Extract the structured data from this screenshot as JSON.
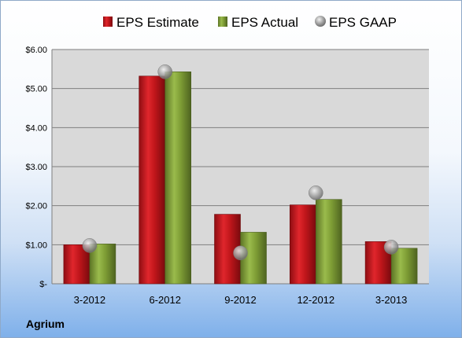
{
  "chart_data": {
    "type": "bar",
    "categories": [
      "3-2012",
      "6-2012",
      "9-2012",
      "12-2012",
      "3-2013"
    ],
    "series": [
      {
        "name": "EPS Estimate",
        "kind": "bar",
        "color": "#c0161b",
        "values": [
          1.0,
          5.32,
          1.78,
          2.02,
          1.08
        ]
      },
      {
        "name": "EPS Actual",
        "kind": "bar",
        "color": "#7e9d35",
        "values": [
          1.02,
          5.43,
          1.32,
          2.16,
          0.91
        ]
      },
      {
        "name": "EPS GAAP",
        "kind": "marker",
        "color": "#a6a6a6",
        "values": [
          0.98,
          5.43,
          0.79,
          2.33,
          0.94
        ]
      }
    ],
    "ylim": [
      0,
      6
    ],
    "yticks": [
      0,
      1,
      2,
      3,
      4,
      5,
      6
    ],
    "ytick_labels": [
      "$-",
      "$1.00",
      "$2.00",
      "$3.00",
      "$4.00",
      "$5.00",
      "$6.00"
    ],
    "grid": true,
    "legend_position": "top",
    "title": "",
    "xlabel": "",
    "ylabel": ""
  },
  "company": "Agrium",
  "plot_background": "#d9d9d9",
  "grid_color": "#7f7f7f"
}
